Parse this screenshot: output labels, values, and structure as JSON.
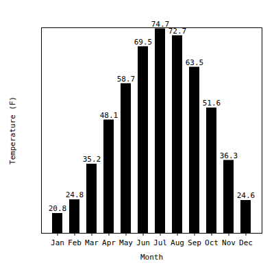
{
  "chart_data": {
    "type": "bar",
    "x_label": "Month",
    "y_label": "Temperature (F)",
    "categories": [
      "Jan",
      "Feb",
      "Mar",
      "Apr",
      "May",
      "Jun",
      "Jul",
      "Aug",
      "Sep",
      "Oct",
      "Nov",
      "Dec"
    ],
    "values": [
      20.8,
      24.8,
      35.2,
      48.1,
      58.7,
      69.5,
      74.7,
      72.7,
      63.5,
      51.6,
      36.3,
      24.6
    ],
    "color": "#000000",
    "ylim": [
      15,
      75
    ],
    "data_labels": true,
    "tick_labels": "x"
  }
}
